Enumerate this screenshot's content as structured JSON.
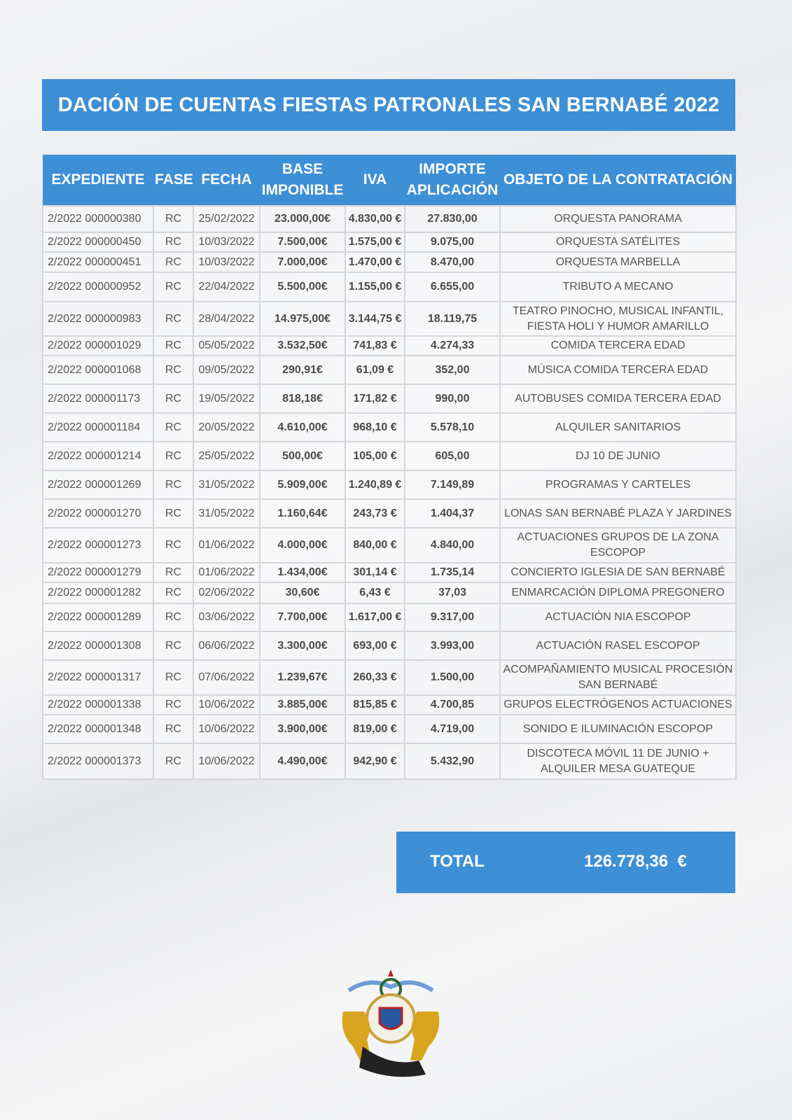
{
  "title": "DACIÓN DE CUENTAS FIESTAS PATRONALES SAN BERNABÉ 2022",
  "table": {
    "headers": [
      "EXPEDIENTE",
      "FASE",
      "FECHA",
      "BASE IMPONIBLE",
      "IVA",
      "IMPORTE APLICACIÓN",
      "OBJETO DE LA CONTRATACIÓN"
    ],
    "rows": [
      [
        "2/2022 000000380",
        "RC",
        "25/02/2022",
        "23.000,00€",
        "4.830,00 €",
        "27.830,00",
        "ORQUESTA PANORAMA"
      ],
      [
        "2/2022 000000450",
        "RC",
        "10/03/2022",
        "7.500,00€",
        "1.575,00 €",
        "9.075,00",
        "ORQUESTA SATÉLITES"
      ],
      [
        "2/2022 000000451",
        "RC",
        "10/03/2022",
        "7.000,00€",
        "1.470,00 €",
        "8.470,00",
        "ORQUESTA MARBELLA"
      ],
      [
        "2/2022 000000952",
        "RC",
        "22/04/2022",
        "5.500,00€",
        "1.155,00 €",
        "6.655,00",
        "TRIBUTO A MECANO"
      ],
      [
        "2/2022 000000983",
        "RC",
        "28/04/2022",
        "14.975,00€",
        "3.144,75 €",
        "18.119,75",
        "TEATRO PINOCHO, MUSICAL INFANTIL, FIESTA HOLI Y HUMOR AMARILLO"
      ],
      [
        "2/2022 000001029",
        "RC",
        "05/05/2022",
        "3.532,50€",
        "741,83 €",
        "4.274,33",
        "COMIDA TERCERA EDAD"
      ],
      [
        "2/2022 000001068",
        "RC",
        "09/05/2022",
        "290,91€",
        "61,09 €",
        "352,00",
        "MÚSICA COMIDA TERCERA EDAD"
      ],
      [
        "2/2022 000001173",
        "RC",
        "19/05/2022",
        "818,18€",
        "171,82 €",
        "990,00",
        "AUTOBUSES COMIDA TERCERA EDAD"
      ],
      [
        "2/2022 000001184",
        "RC",
        "20/05/2022",
        "4.610,00€",
        "968,10 €",
        "5.578,10",
        "ALQUILER SANITARIOS"
      ],
      [
        "2/2022 000001214",
        "RC",
        "25/05/2022",
        "500,00€",
        "105,00 €",
        "605,00",
        "DJ 10 DE JUNIO"
      ],
      [
        "2/2022 000001269",
        "RC",
        "31/05/2022",
        "5.909,00€",
        "1.240,89 €",
        "7.149,89",
        "PROGRAMAS Y CARTELES"
      ],
      [
        "2/2022 000001270",
        "RC",
        "31/05/2022",
        "1.160,64€",
        "243,73 €",
        "1.404,37",
        "LONAS SAN BERNABÉ PLAZA Y JARDINES"
      ],
      [
        "2/2022 000001273",
        "RC",
        "01/06/2022",
        "4.000,00€",
        "840,00 €",
        "4.840,00",
        "ACTUACIONES GRUPOS DE LA ZONA ESCOPOP"
      ],
      [
        "2/2022 000001279",
        "RC",
        "01/06/2022",
        "1.434,00€",
        "301,14 €",
        "1.735,14",
        "CONCIERTO IGLESIA DE SAN BERNABÉ"
      ],
      [
        "2/2022 000001282",
        "RC",
        "02/06/2022",
        "30,60€",
        "6,43 €",
        "37,03",
        "ENMARCACIÓN DIPLOMA PREGONERO"
      ],
      [
        "2/2022 000001289",
        "RC",
        "03/06/2022",
        "7.700,00€",
        "1.617,00 €",
        "9.317,00",
        "ACTUACIÓN NIA ESCOPOP"
      ],
      [
        "2/2022 000001308",
        "RC",
        "06/06/2022",
        "3.300,00€",
        "693,00 €",
        "3.993,00",
        "ACTUACIÓN RASEL ESCOPOP"
      ],
      [
        "2/2022 000001317",
        "RC",
        "07/06/2022",
        "1.239,67€",
        "260,33 €",
        "1.500,00",
        "ACOMPAÑAMIENTO MUSICAL PROCESIÓN SAN BERNABÉ"
      ],
      [
        "2/2022 000001338",
        "RC",
        "10/06/2022",
        "3.885,00€",
        "815,85 €",
        "4.700,85",
        "GRUPOS ELECTRÓGENOS ACTUACIONES"
      ],
      [
        "2/2022 000001348",
        "RC",
        "10/06/2022",
        "3.900,00€",
        "819,00 €",
        "4.719,00",
        "SONIDO E ILUMINACIÓN ESCOPOP"
      ],
      [
        "2/2022 000001373",
        "RC",
        "10/06/2022",
        "4.490,00€",
        "942,90 €",
        "5.432,90",
        "DISCOTECA MÓVIL 11 DE JUNIO + ALQUILER MESA GUATEQUE"
      ]
    ]
  },
  "total": {
    "label": "TOTAL",
    "value": "126.778,36  €"
  },
  "colors": {
    "accent": "#3d8fd6"
  },
  "logo": {
    "name": "coat-of-arms"
  }
}
